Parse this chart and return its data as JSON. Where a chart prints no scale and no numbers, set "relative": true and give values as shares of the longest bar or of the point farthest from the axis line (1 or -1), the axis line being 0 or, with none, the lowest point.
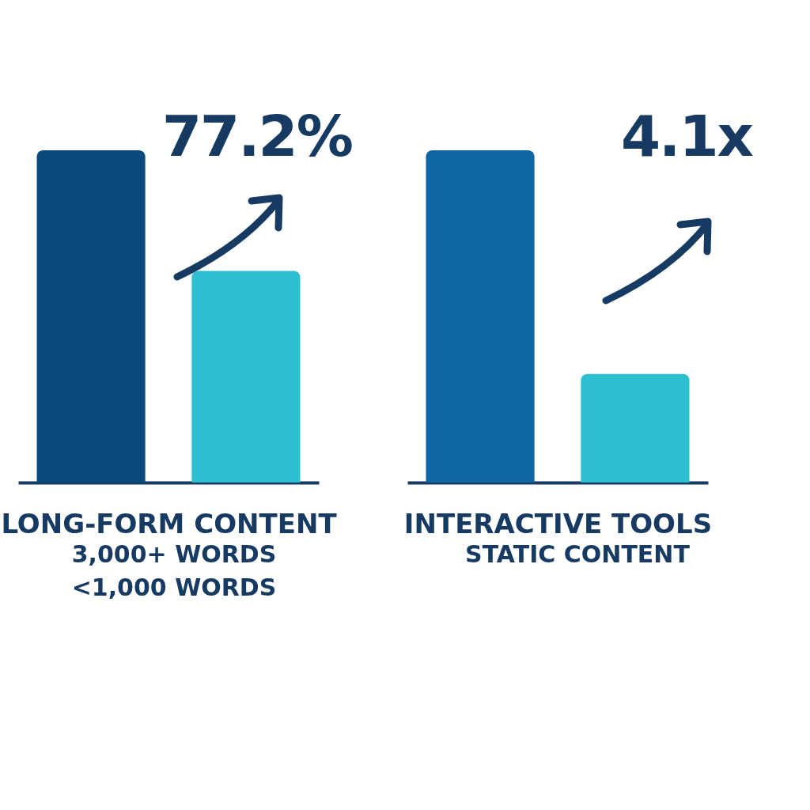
{
  "chart_data": [
    {
      "type": "bar",
      "relative": true,
      "categories": [
        null,
        null
      ],
      "values": [
        1,
        0.637
      ],
      "colors": [
        "#0b4a7d",
        "#2bbfd0"
      ],
      "xlabel": "LONG-FORM CONTENT",
      "annotations": [
        "77.2%",
        "3,000+ WORDS",
        "<1,000 WORDS"
      ]
    },
    {
      "type": "bar",
      "relative": true,
      "categories": [
        null,
        null
      ],
      "values": [
        1,
        0.327
      ],
      "colors": [
        "#0e66a4",
        "#2bbfd0"
      ],
      "xlabel": "INTERACTIVE TOOLS",
      "annotations": [
        "4.1x",
        "STATIC CONTENT"
      ]
    }
  ]
}
